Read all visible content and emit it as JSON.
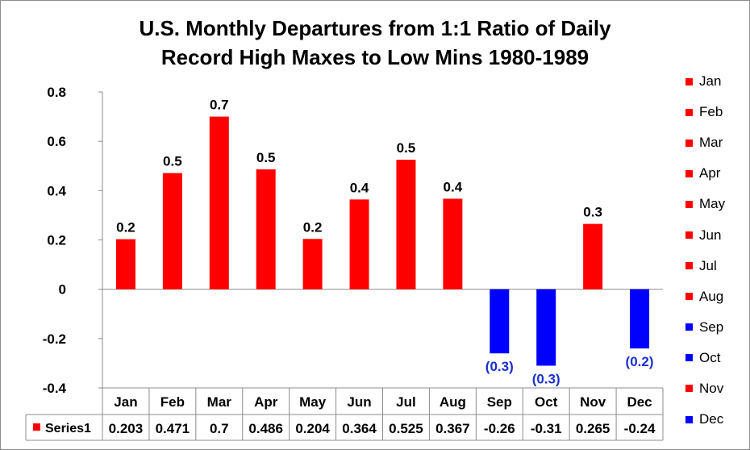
{
  "chart_data": {
    "type": "bar",
    "title": "U.S. Monthly Departures from 1:1 Ratio of Daily Record High Maxes to Low Mins 1980-1989",
    "title_lines": [
      "U.S. Monthly Departures from 1:1 Ratio of Daily",
      "Record High Maxes to Low Mins 1980-1989"
    ],
    "categories": [
      "Jan",
      "Feb",
      "Mar",
      "Apr",
      "May",
      "Jun",
      "Jul",
      "Aug",
      "Sep",
      "Oct",
      "Nov",
      "Dec"
    ],
    "series": [
      {
        "name": "Series1",
        "values": [
          0.203,
          0.471,
          0.7,
          0.486,
          0.204,
          0.364,
          0.525,
          0.367,
          -0.26,
          -0.31,
          0.265,
          -0.24
        ],
        "table_values": [
          "0.203",
          "0.471",
          "0.7",
          "0.486",
          "0.204",
          "0.364",
          "0.525",
          "0.367",
          "-0.26",
          "-0.31",
          "0.265",
          "-0.24"
        ],
        "data_labels": [
          "0.2",
          "0.5",
          "0.7",
          "0.5",
          "0.2",
          "0.4",
          "0.5",
          "0.4",
          "(0.3)",
          "(0.3)",
          "0.3",
          "(0.2)"
        ]
      }
    ],
    "ylim": [
      -0.4,
      0.8
    ],
    "yticks": [
      "0.8",
      "0.6",
      "0.4",
      "0.2",
      "0",
      "-0.2",
      "-0.4"
    ],
    "ytick_values": [
      0.8,
      0.6,
      0.4,
      0.2,
      0,
      -0.2,
      -0.4
    ],
    "grid": false,
    "legend_position": "right",
    "data_table": true,
    "colors": {
      "positive": "#ff0000",
      "negative": "#0000ff",
      "negative_label": "#1a2fd0",
      "axis": "#8c8c8c"
    }
  }
}
